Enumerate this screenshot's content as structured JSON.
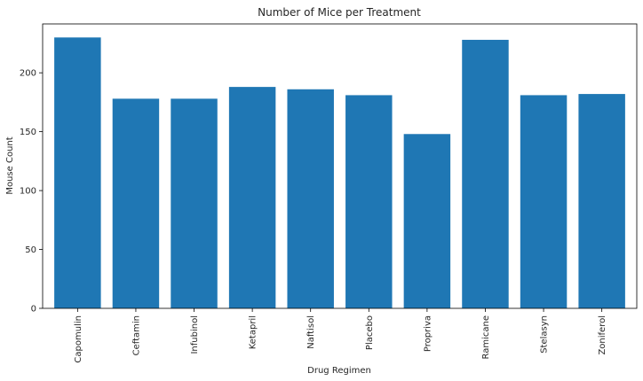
{
  "chart_data": {
    "type": "bar",
    "title": "Number of Mice per Treatment",
    "xlabel": "Drug Regimen",
    "ylabel": "Mouse Count",
    "categories": [
      "Capomulin",
      "Ceftamin",
      "Infubinol",
      "Ketapril",
      "Naftisol",
      "Placebo",
      "Propriva",
      "Ramicane",
      "Stelasyn",
      "Zoniferol"
    ],
    "values": [
      230,
      178,
      178,
      188,
      186,
      181,
      148,
      228,
      181,
      182
    ],
    "ylim": [
      0,
      241.5
    ],
    "yticks": [
      0,
      50,
      100,
      150,
      200
    ],
    "bar_color": "#1f77b4",
    "grid": false,
    "legend": "none"
  }
}
